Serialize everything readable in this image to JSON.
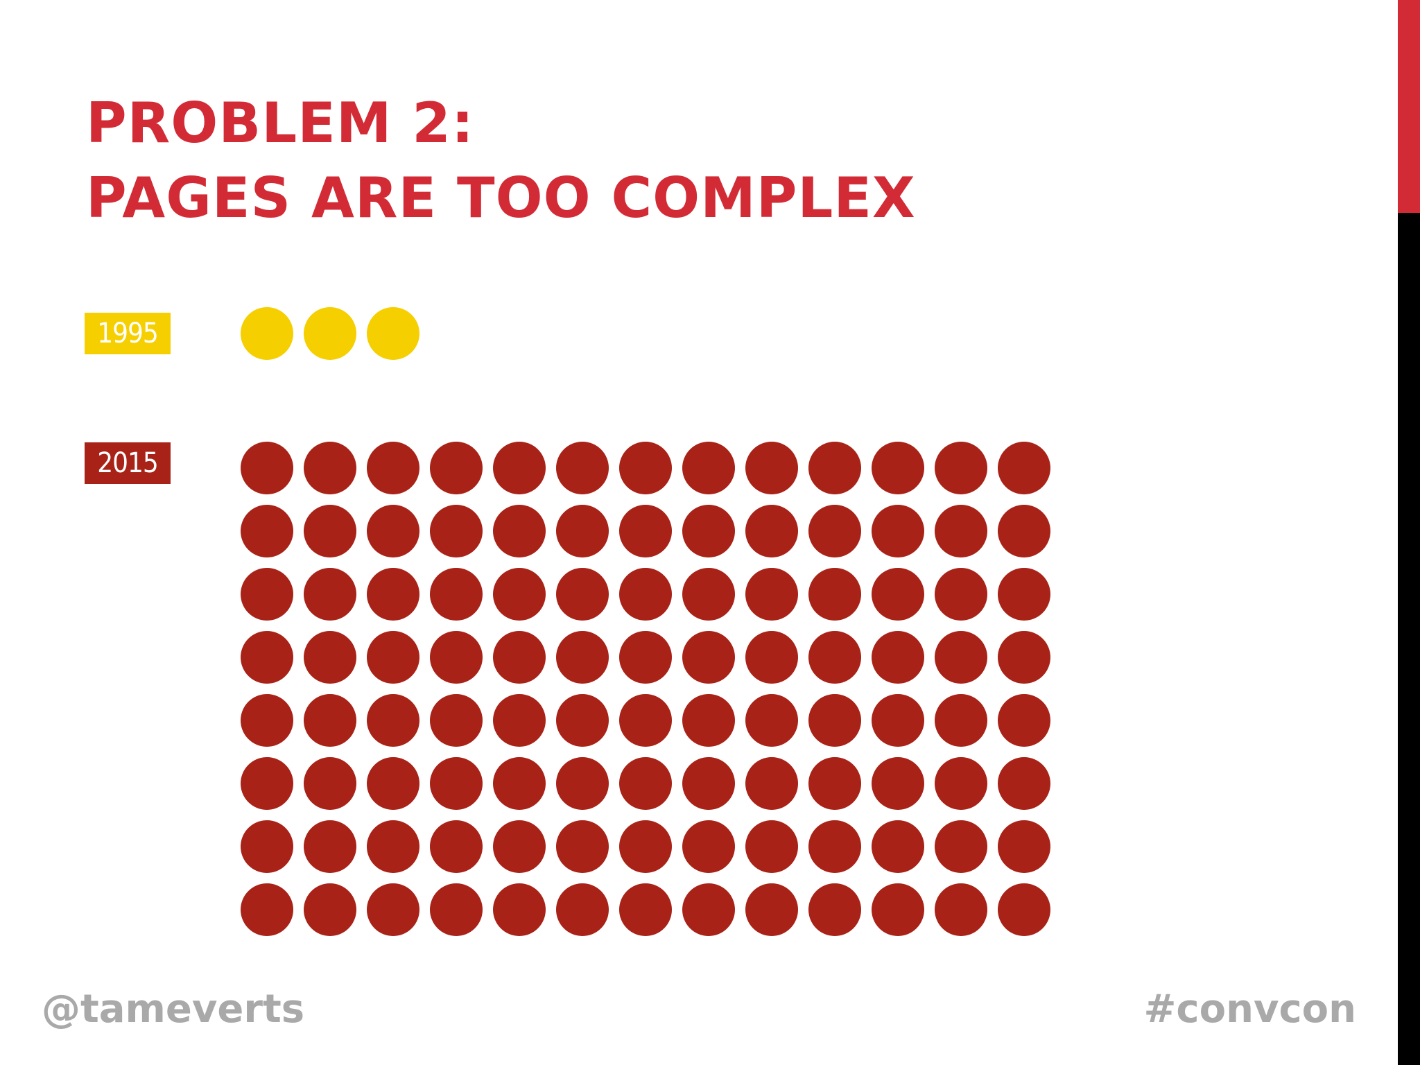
{
  "slide": {
    "title_line1": "PROBLEM 2:",
    "title_line2": "PAGES ARE TOO COMPLEX",
    "footer_left": "@tameverts",
    "footer_right": "#convcon"
  },
  "infographic": {
    "rows": [
      {
        "label": "1995",
        "dot_count": 3,
        "color": "#f5cf00"
      },
      {
        "label": "2015",
        "dot_count": 104,
        "color": "#a82217"
      }
    ],
    "accent_color": "#d32b35",
    "footer_color": "#a9a9a9"
  }
}
